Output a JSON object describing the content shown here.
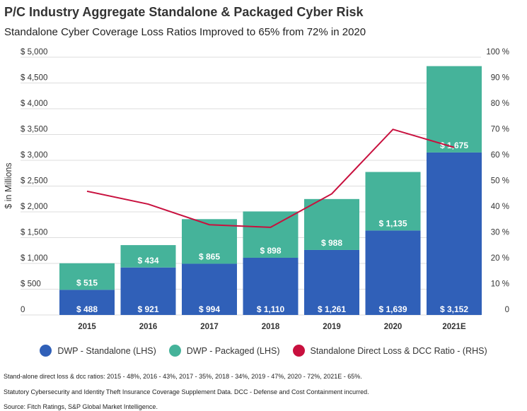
{
  "title": "P/C Industry Aggregate Standalone & Packaged Cyber Risk",
  "subtitle": "Standalone Cyber Coverage Loss Ratios Improved to 65% from 72% in 2020",
  "notes": [
    "Stand-alone direct loss & dcc ratios: 2015 - 48%, 2016 - 43%, 2017 - 35%, 2018 - 34%, 2019 - 47%, 2020 - 72%, 2021E - 65%.",
    "Statutory Cybersecurity and Identity Theft Insurance Coverage Supplement Data.  DCC - Defense and Cost Containment incurred.",
    "Source: Fitch Ratings, S&P Global Market Intelligence."
  ],
  "chart_data": {
    "type": "bar",
    "stacked": true,
    "categories": [
      "2015",
      "2016",
      "2017",
      "2018",
      "2019",
      "2020",
      "2021E"
    ],
    "series": [
      {
        "name": "DWP - Standalone (LHS)",
        "color": "#3060b8",
        "values": [
          488,
          921,
          994,
          1110,
          1261,
          1639,
          3152
        ],
        "labels": [
          "$ 488",
          "$ 921",
          "$ 994",
          "$ 1,110",
          "$ 1,261",
          "$ 1,639",
          "$ 3,152"
        ]
      },
      {
        "name": "DWP - Packaged (LHS)",
        "color": "#45b39a",
        "values": [
          515,
          434,
          865,
          898,
          988,
          1135,
          1675
        ],
        "labels": [
          "$ 515",
          "$ 434",
          "$ 865",
          "$ 898",
          "$ 988",
          "$ 1,135",
          "$ 1,675"
        ]
      },
      {
        "name": "Standalone Direct Loss & DCC Ratio - (RHS)",
        "color": "#c8103e",
        "type": "line",
        "axis": "right",
        "values": [
          48,
          43,
          35,
          34,
          47,
          72,
          65
        ]
      }
    ],
    "ylabel": "$ in Millions",
    "ylim": [
      0,
      5000
    ],
    "yticks": [
      "0",
      "$ 500",
      "$ 1,000",
      "$ 1,500",
      "$ 2,000",
      "$ 2,500",
      "$ 3,000",
      "$ 3,500",
      "$ 4,000",
      "$ 4,500",
      "$ 5,000"
    ],
    "y2lim": [
      0,
      100
    ],
    "y2ticks": [
      "0",
      "10 %",
      "20 %",
      "30 %",
      "40 %",
      "50 %",
      "60 %",
      "70 %",
      "80 %",
      "90 %",
      "100 %"
    ],
    "grid": true,
    "legend": "bottom"
  }
}
